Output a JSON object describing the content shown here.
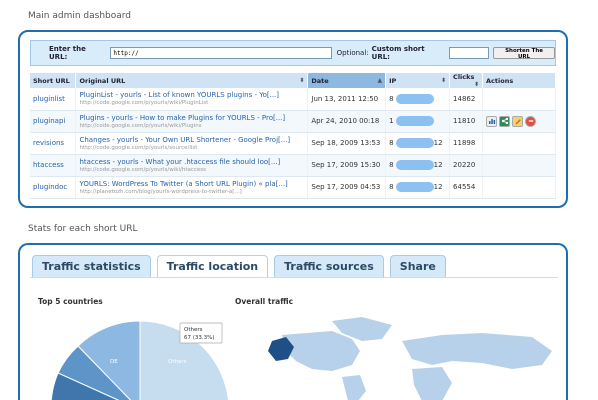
{
  "dashboard": {
    "title": "Main admin dashboard"
  },
  "url_form": {
    "enter_label": "Enter the URL:",
    "url_value": "http://",
    "optional_label": "Optional:",
    "custom_label": "Custom short URL:",
    "custom_value": "",
    "submit_label": "Shorten The URL"
  },
  "table": {
    "headers": [
      "Short URL",
      "Original URL",
      "Date",
      "IP",
      "Clicks",
      "Actions"
    ],
    "rows": [
      {
        "keyword": "pluginlist",
        "title": "PluginList - yourls - List of known YOURLS plugins - Yo[...]",
        "url": "http://code.google.com/p/yourls/wiki/PluginList",
        "date": "Jun 13, 2011 12:50",
        "ip_prefix": "8",
        "ip_suffix": "",
        "clicks": "14862"
      },
      {
        "keyword": "pluginapi",
        "title": "Plugins - yourls - How to make Plugins for YOURLS - Pro[...]",
        "url": "http://code.google.com/p/yourls/wiki/Plugins",
        "date": "Apr 24, 2010 00:18",
        "ip_prefix": "1",
        "ip_suffix": "",
        "clicks": "11810"
      },
      {
        "keyword": "revisions",
        "title": "Changes - yourls - Your Own URL Shortener - Google Proj[...]",
        "url": "http://code.google.com/p/yourls/source/list",
        "date": "Sep 18, 2009 13:53",
        "ip_prefix": "8",
        "ip_suffix": "12",
        "clicks": "11898"
      },
      {
        "keyword": "htaccess",
        "title": "htaccess - yourls - What your .htaccess file should loo[...]",
        "url": "http://code.google.com/p/yourls/wiki/htaccess",
        "date": "Sep 17, 2009 15:30",
        "ip_prefix": "8",
        "ip_suffix": "12",
        "clicks": "20220"
      },
      {
        "keyword": "plugindoc",
        "title": "YOURLS: WordPress To Twitter (a Short URL Plugin) « pla[...]",
        "url": "http://planetozh.com/blog/yourls-wordpress-to-twitter-a[...]",
        "date": "Sep 17, 2009 04:53",
        "ip_prefix": "8",
        "ip_suffix": "12",
        "clicks": "64554"
      }
    ]
  },
  "stats": {
    "title": "Stats for each short URL",
    "tabs": [
      "Traffic statistics",
      "Traffic location",
      "Traffic sources",
      "Share"
    ],
    "active_tab": "Traffic location",
    "top_countries_title": "Top 5 countries",
    "overall_traffic_title": "Overall traffic",
    "tooltip_title": "Others",
    "tooltip_value": "67 (33.3%)",
    "pie_labels": [
      "DE",
      "Others"
    ]
  },
  "icons": [
    "stats-icon",
    "share-icon",
    "edit-icon",
    "delete-icon"
  ],
  "colors": {
    "accent": "#1f6fb0",
    "link": "#2a62a8",
    "highlight": "#8db8e2"
  }
}
